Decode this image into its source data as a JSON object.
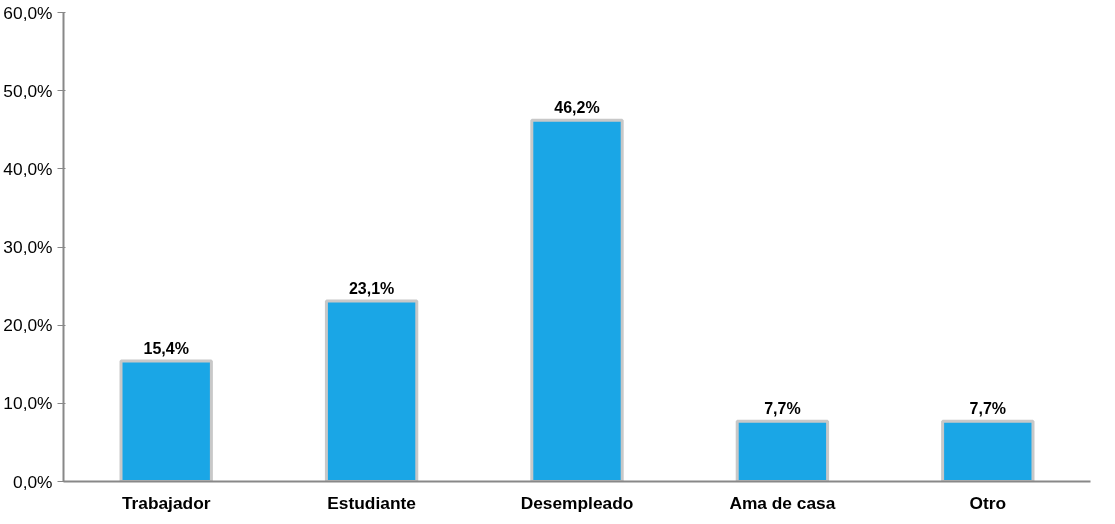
{
  "chart_data": {
    "type": "bar",
    "categories": [
      "Trabajador",
      "Estudiante",
      "Desempleado",
      "Ama de casa",
      "Otro"
    ],
    "values": [
      15.4,
      23.1,
      46.2,
      7.7,
      7.7
    ],
    "value_labels": [
      "15,4%",
      "23,1%",
      "46,2%",
      "7,7%",
      "7,7%"
    ],
    "color": "#1aa6e6",
    "ylim": [
      0,
      60
    ],
    "yticks": [
      {
        "value": 0,
        "label": "0,0%"
      },
      {
        "value": 10,
        "label": "10,0%"
      },
      {
        "value": 20,
        "label": "20,0%"
      },
      {
        "value": 30,
        "label": "30,0%"
      },
      {
        "value": 40,
        "label": "40,0%"
      },
      {
        "value": 50,
        "label": "50,0%"
      },
      {
        "value": 60,
        "label": "60,0%"
      }
    ],
    "grid": false
  }
}
